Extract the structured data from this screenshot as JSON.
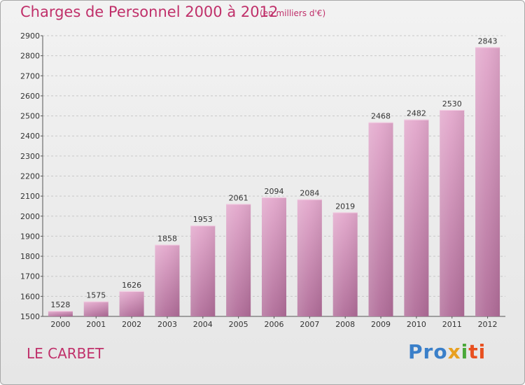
{
  "header": {
    "title": "Charges de Personnel 2000 à 2012",
    "subtitle": "(en milliers d'€)"
  },
  "footer": {
    "commune": "LE CARBET",
    "logo": "Proxiti"
  },
  "colors": {
    "title": "#c0306a",
    "bar_top": "#e3a8cc",
    "bar_bottom": "#b06c98",
    "grid": "#c8c8c8"
  },
  "chart_data": {
    "type": "bar",
    "title": "Charges de Personnel 2000 à 2012",
    "subtitle": "(en milliers d'€)",
    "xlabel": "",
    "ylabel": "",
    "categories": [
      "2000",
      "2001",
      "2002",
      "2003",
      "2004",
      "2005",
      "2006",
      "2007",
      "2008",
      "2009",
      "2010",
      "2011",
      "2012"
    ],
    "values": [
      1528,
      1575,
      1626,
      1858,
      1953,
      2061,
      2094,
      2084,
      2019,
      2468,
      2482,
      2530,
      2843
    ],
    "ylim": [
      1500,
      2900
    ],
    "yticks": [
      1500,
      1600,
      1700,
      1800,
      1900,
      2000,
      2100,
      2200,
      2300,
      2400,
      2500,
      2600,
      2700,
      2800,
      2900
    ],
    "grid": true,
    "legend": "none"
  }
}
